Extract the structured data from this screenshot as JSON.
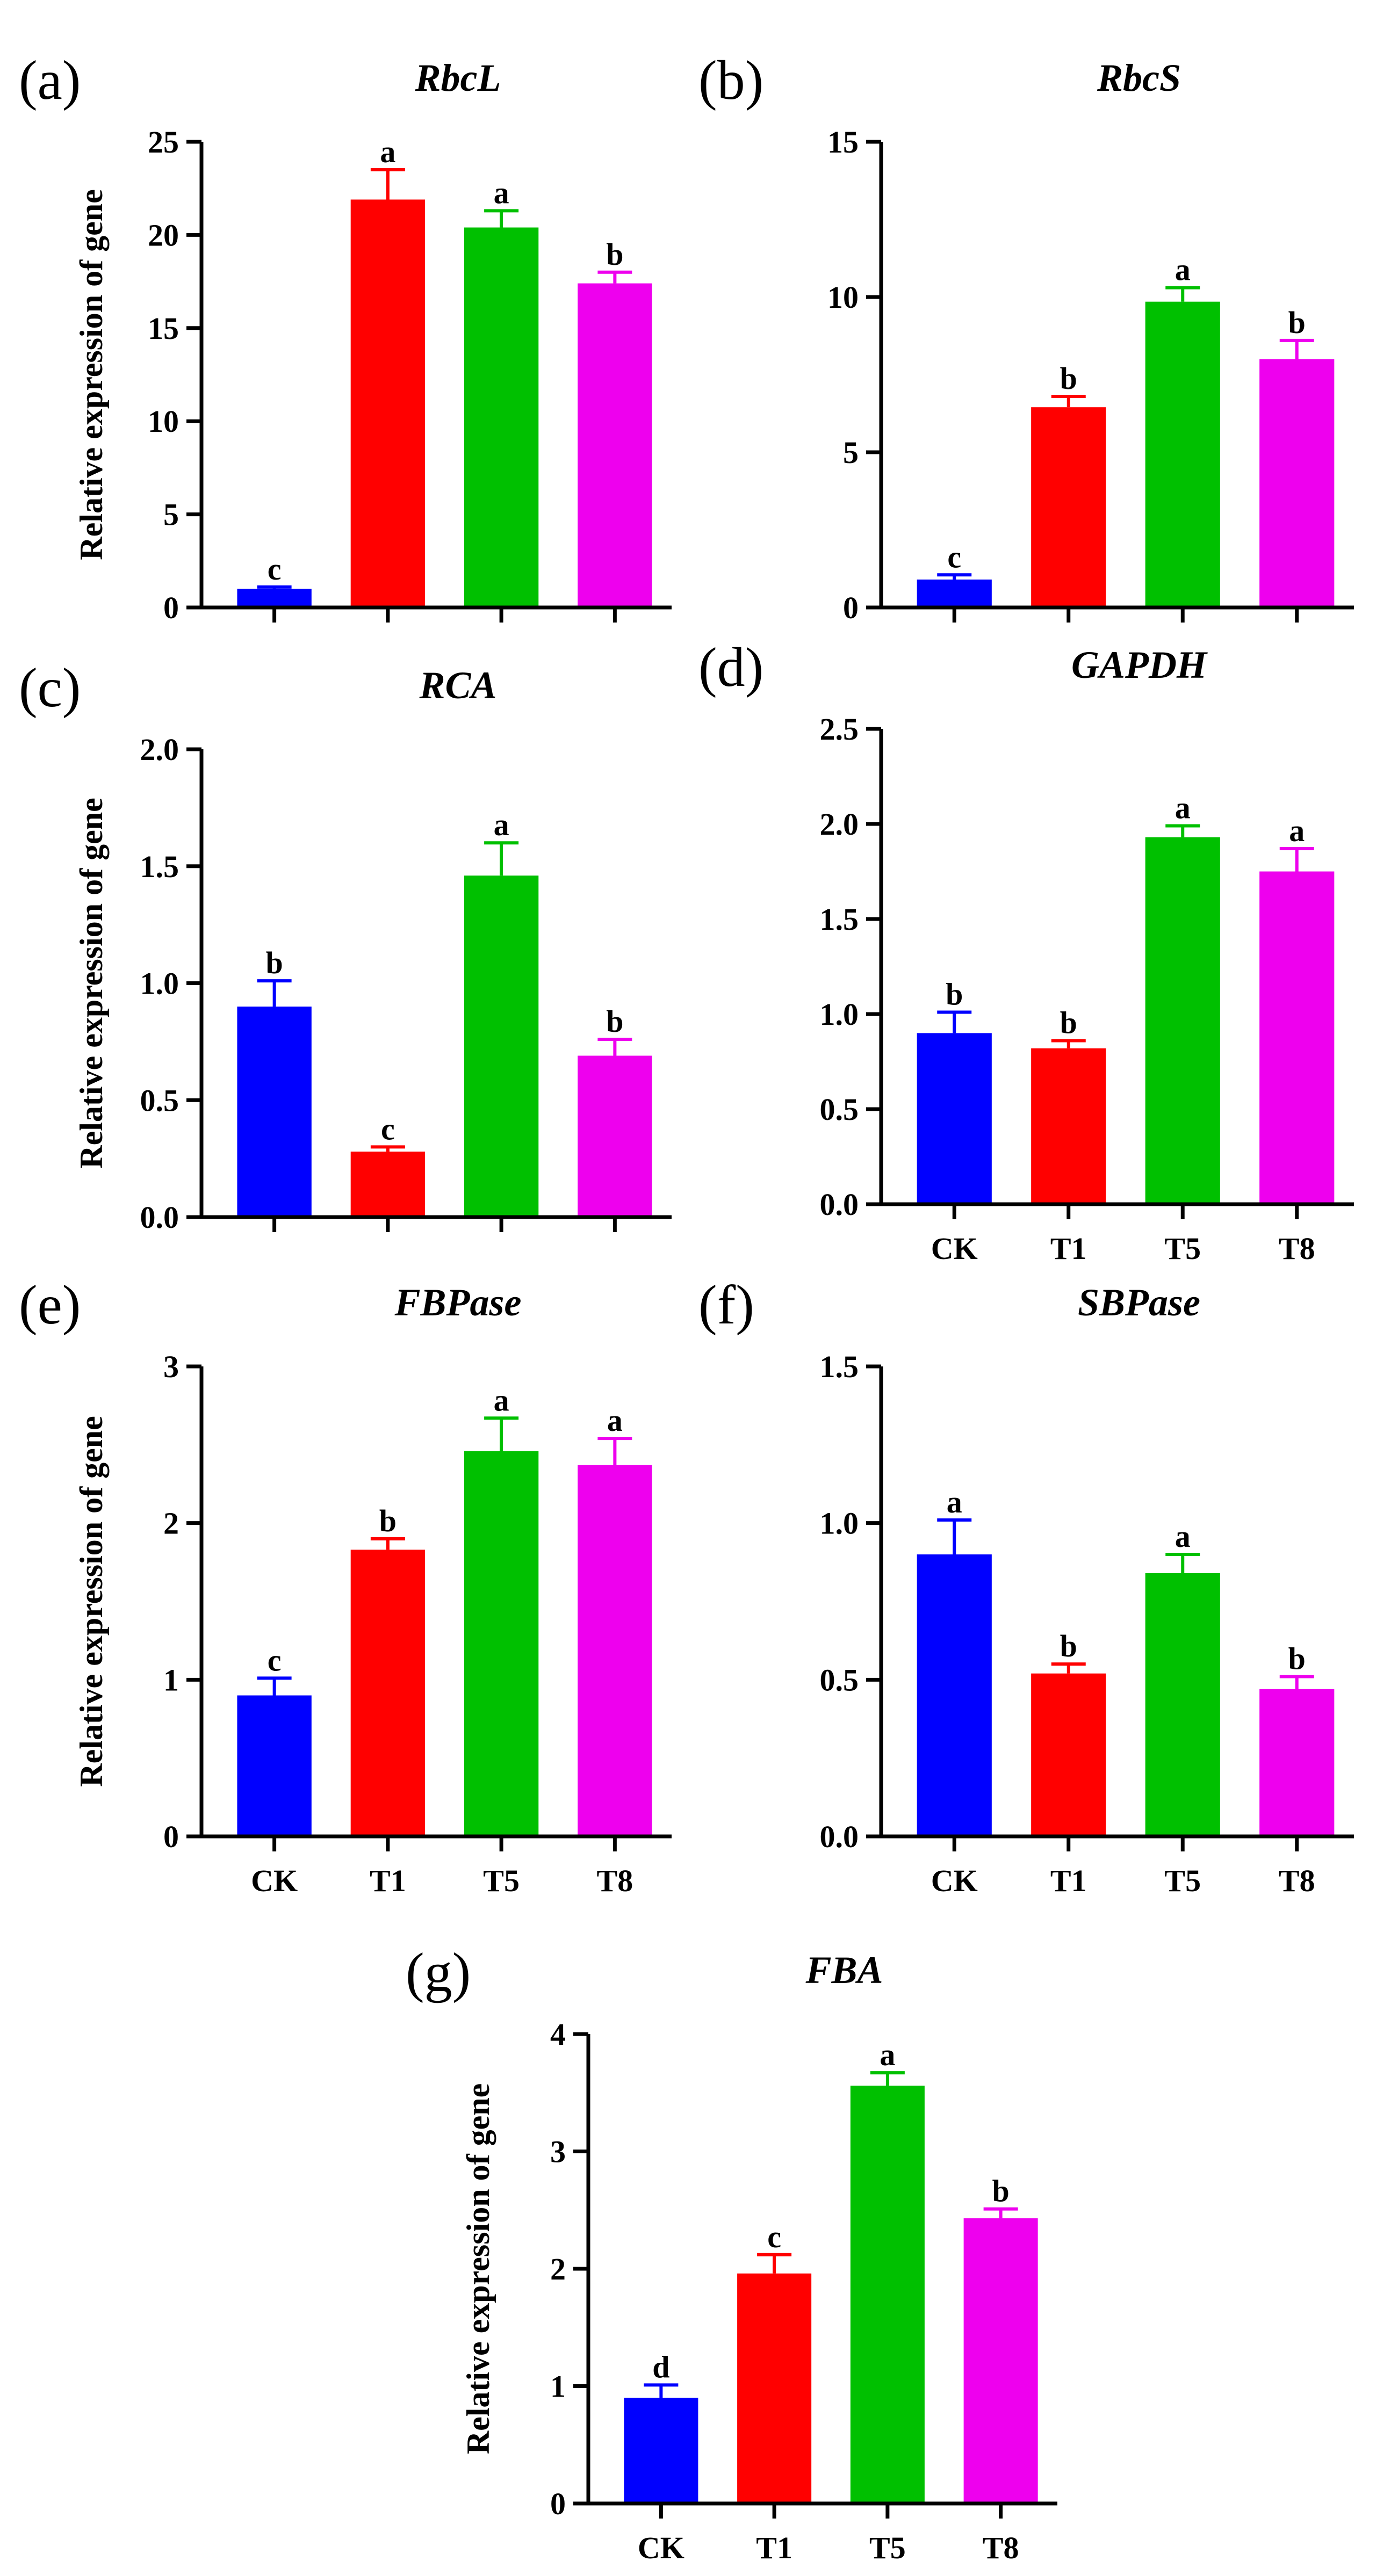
{
  "figure": {
    "ylabel": "Relative expression of gene",
    "colors": {
      "CK": "#0000ff",
      "T1": "#ff0000",
      "T5": "#00c000",
      "T8": "#ee00ee"
    }
  },
  "chart_data": [
    {
      "type": "bar",
      "panel": "(a)",
      "title": "RbcL",
      "ylabel": "Relative expression of gene",
      "categories": [
        "CK",
        "T1",
        "T5",
        "T8"
      ],
      "show_category_labels": false,
      "values": [
        1.0,
        21.9,
        20.4,
        17.4
      ],
      "errors": [
        0.1,
        1.6,
        0.9,
        0.6
      ],
      "significance": [
        "c",
        "a",
        "a",
        "b"
      ],
      "ylim": [
        0,
        25
      ],
      "yticks": [
        0,
        5,
        10,
        15,
        20,
        25
      ],
      "ytick_labels": [
        "0",
        "5",
        "10",
        "15",
        "20",
        "25"
      ]
    },
    {
      "type": "bar",
      "panel": "(b)",
      "title": "RbcS",
      "ylabel": "",
      "categories": [
        "CK",
        "T1",
        "T5",
        "T8"
      ],
      "show_category_labels": false,
      "values": [
        0.9,
        6.45,
        9.85,
        8.0
      ],
      "errors": [
        0.15,
        0.35,
        0.45,
        0.6
      ],
      "significance": [
        "c",
        "b",
        "a",
        "b"
      ],
      "ylim": [
        0,
        15
      ],
      "yticks": [
        0,
        5,
        10,
        15
      ],
      "ytick_labels": [
        "0",
        "5",
        "10",
        "15"
      ]
    },
    {
      "type": "bar",
      "panel": "(c)",
      "title": "RCA",
      "ylabel": "Relative expression of gene",
      "categories": [
        "CK",
        "T1",
        "T5",
        "T8"
      ],
      "show_category_labels": false,
      "values": [
        0.9,
        0.28,
        1.46,
        0.69
      ],
      "errors": [
        0.11,
        0.02,
        0.14,
        0.07
      ],
      "significance": [
        "b",
        "c",
        "a",
        "b"
      ],
      "ylim": [
        0,
        2.0
      ],
      "yticks": [
        0,
        0.5,
        1.0,
        1.5,
        2.0
      ],
      "ytick_labels": [
        "0.0",
        "0.5",
        "1.0",
        "1.5",
        "2.0"
      ]
    },
    {
      "type": "bar",
      "panel": "(d)",
      "title": "GAPDH",
      "ylabel": "",
      "categories": [
        "CK",
        "T1",
        "T5",
        "T8"
      ],
      "show_category_labels": true,
      "values": [
        0.9,
        0.82,
        1.93,
        1.75
      ],
      "errors": [
        0.11,
        0.04,
        0.06,
        0.12
      ],
      "significance": [
        "b",
        "b",
        "a",
        "a"
      ],
      "ylim": [
        0,
        2.5
      ],
      "yticks": [
        0,
        0.5,
        1.0,
        1.5,
        2.0,
        2.5
      ],
      "ytick_labels": [
        "0.0",
        "0.5",
        "1.0",
        "1.5",
        "2.0",
        "2.5"
      ]
    },
    {
      "type": "bar",
      "panel": "(e)",
      "title": "FBPase",
      "ylabel": "Relative expression of gene",
      "categories": [
        "CK",
        "T1",
        "T5",
        "T8"
      ],
      "show_category_labels": true,
      "values": [
        0.9,
        1.83,
        2.46,
        2.37
      ],
      "errors": [
        0.11,
        0.07,
        0.21,
        0.17
      ],
      "significance": [
        "c",
        "b",
        "a",
        "a"
      ],
      "ylim": [
        0,
        3
      ],
      "yticks": [
        0,
        1,
        2,
        3
      ],
      "ytick_labels": [
        "0",
        "1",
        "2",
        "3"
      ]
    },
    {
      "type": "bar",
      "panel": "(f)",
      "title": "SBPase",
      "ylabel": "",
      "categories": [
        "CK",
        "T1",
        "T5",
        "T8"
      ],
      "show_category_labels": true,
      "values": [
        0.9,
        0.52,
        0.84,
        0.47
      ],
      "errors": [
        0.11,
        0.03,
        0.06,
        0.04
      ],
      "significance": [
        "a",
        "b",
        "a",
        "b"
      ],
      "ylim": [
        0,
        1.5
      ],
      "yticks": [
        0,
        0.5,
        1.0,
        1.5
      ],
      "ytick_labels": [
        "0.0",
        "0.5",
        "1.0",
        "1.5"
      ]
    },
    {
      "type": "bar",
      "panel": "(g)",
      "title": "FBA",
      "ylabel": "Relative expression of gene",
      "categories": [
        "CK",
        "T1",
        "T5",
        "T8"
      ],
      "show_category_labels": true,
      "values": [
        0.9,
        1.96,
        3.56,
        2.43
      ],
      "errors": [
        0.11,
        0.16,
        0.11,
        0.08
      ],
      "significance": [
        "d",
        "c",
        "a",
        "b"
      ],
      "ylim": [
        0,
        4
      ],
      "yticks": [
        0,
        1,
        2,
        3,
        4
      ],
      "ytick_labels": [
        "0",
        "1",
        "2",
        "3",
        "4"
      ]
    }
  ]
}
